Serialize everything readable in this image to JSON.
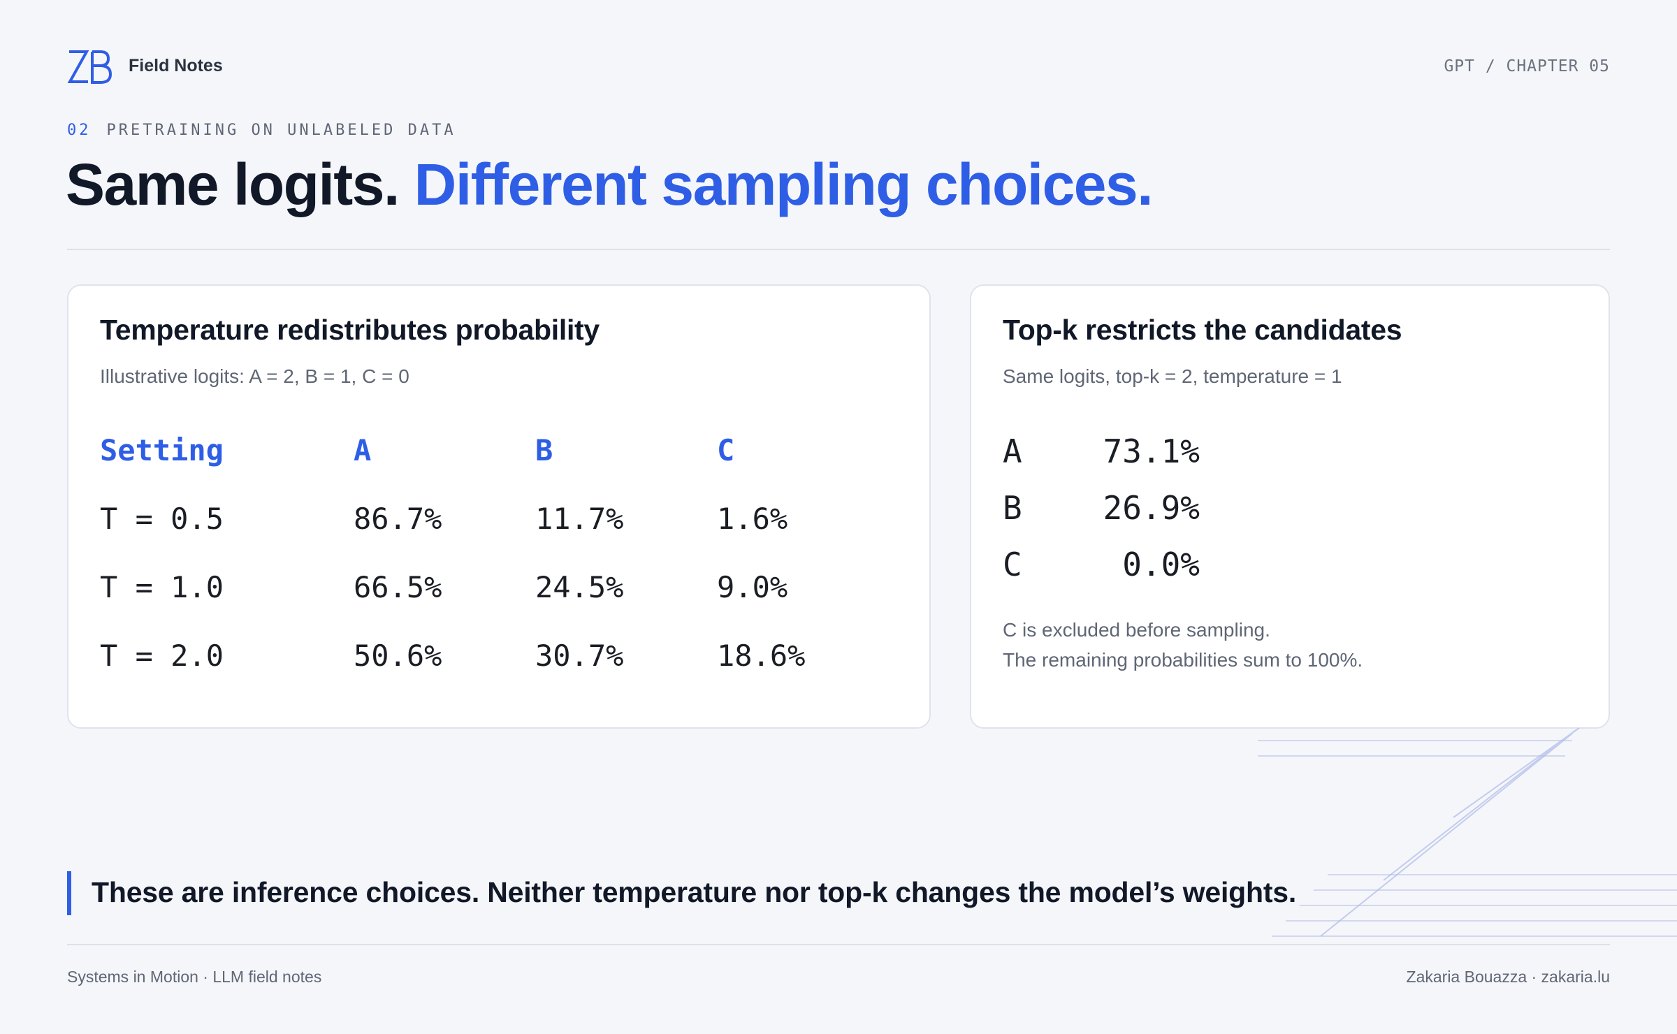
{
  "header": {
    "brand": "Field Notes",
    "chapter": "GPT / CHAPTER 05",
    "section_number": "02",
    "section_title": "PRETRAINING ON UNLABELED DATA",
    "title_main": "Same logits.",
    "title_accent": "Different sampling choices."
  },
  "temperature_card": {
    "title": "Temperature redistributes probability",
    "subtitle": "Illustrative logits: A = 2, B = 1, C = 0",
    "columns": [
      "Setting",
      "A",
      "B",
      "C"
    ],
    "rows": [
      [
        "T = 0.5",
        "86.7%",
        "11.7%",
        "1.6%"
      ],
      [
        "T = 1.0",
        "66.5%",
        "24.5%",
        "9.0%"
      ],
      [
        "T = 2.0",
        "50.6%",
        "30.7%",
        "18.6%"
      ]
    ]
  },
  "topk_card": {
    "title": "Top-k restricts the candidates",
    "subtitle": "Same logits, top-k = 2, temperature = 1",
    "rows": [
      {
        "token": "A",
        "value": "73.1%"
      },
      {
        "token": "B",
        "value": "26.9%"
      },
      {
        "token": "C",
        "value": "0.0%"
      }
    ],
    "note_line1": "C is excluded before sampling.",
    "note_line2": "The remaining probabilities sum to 100%."
  },
  "quote": "These are inference choices. Neither temperature nor top-k changes the model’s weights.",
  "footer": {
    "left": "Systems in Motion · LLM field notes",
    "right": "Zakaria Bouazza · zakaria.lu"
  },
  "colors": {
    "accent": "#2f5ee6",
    "background": "#f5f6fa",
    "text": "#111827",
    "muted": "#5f6675"
  }
}
